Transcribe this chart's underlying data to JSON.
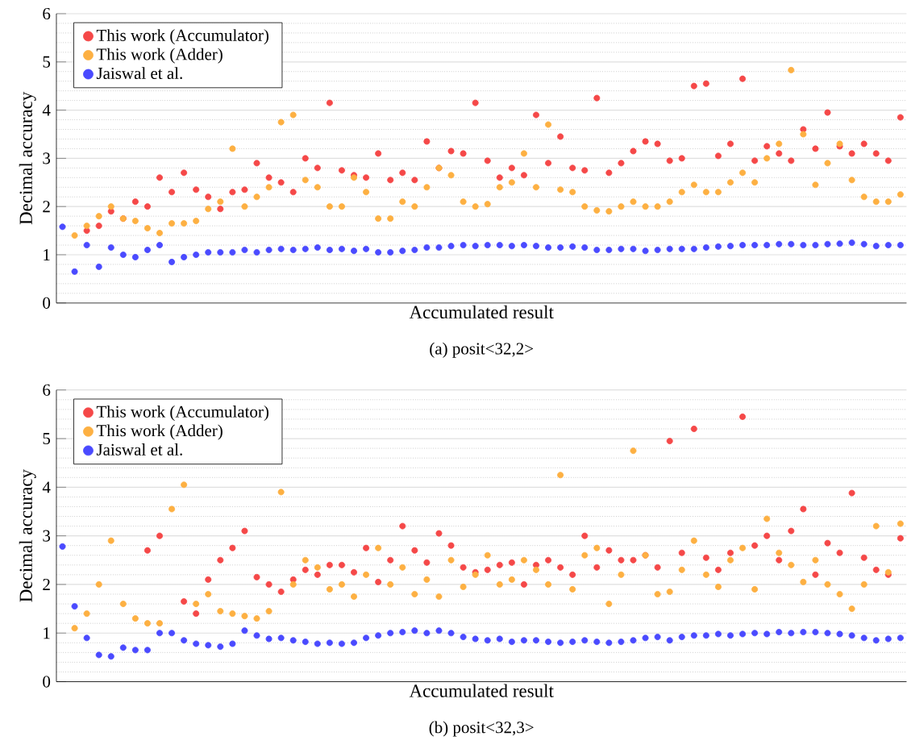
{
  "chart_data": [
    {
      "type": "scatter",
      "title": "(a) posit<32,2>",
      "xlabel": "Accumulated result",
      "ylabel": "Decimal accuracy",
      "categories": [
        null,
        null,
        null,
        null,
        null,
        null,
        null,
        null,
        null,
        null,
        null,
        null,
        null,
        null,
        null,
        null,
        null,
        null,
        null,
        null,
        null,
        null,
        null,
        null,
        null,
        null,
        null,
        null,
        null,
        null,
        null,
        null,
        null,
        null,
        null,
        null,
        null,
        null,
        null,
        null,
        null,
        null,
        null,
        null,
        null,
        null,
        null,
        null,
        null,
        null,
        null,
        null,
        null,
        null,
        null,
        null,
        null,
        null,
        null,
        null,
        null,
        null,
        null,
        null,
        null,
        null,
        null,
        null,
        null,
        null
      ],
      "ylim": [
        0,
        6
      ],
      "yticks": [
        0,
        1,
        2,
        3,
        4,
        5,
        6
      ],
      "grid": "y",
      "legend": "top left",
      "marker": "circle",
      "tick_labels": "y",
      "series": [
        {
          "name": "This work (Accumulator)",
          "color": "#f54848",
          "values": [
            null,
            null,
            1.5,
            1.6,
            1.9,
            1.75,
            2.1,
            2.0,
            2.6,
            2.3,
            2.7,
            2.35,
            2.2,
            1.95,
            2.3,
            2.35,
            2.9,
            2.6,
            2.5,
            2.3,
            3.0,
            2.8,
            4.15,
            2.75,
            2.65,
            2.6,
            3.1,
            2.55,
            2.7,
            2.55,
            3.35,
            2.8,
            3.15,
            3.1,
            4.15,
            2.95,
            2.6,
            2.8,
            2.65,
            3.9,
            2.9,
            3.45,
            2.8,
            2.75,
            4.25,
            2.7,
            2.9,
            3.15,
            3.35,
            3.3,
            2.95,
            3.0,
            4.5,
            4.55,
            3.05,
            3.3,
            4.65,
            2.95,
            3.25,
            3.1,
            2.95,
            3.6,
            3.2,
            3.95,
            3.25,
            3.1,
            3.3,
            3.1,
            2.95,
            3.85
          ]
        },
        {
          "name": "This work (Adder)",
          "color": "#fdb042",
          "values": [
            null,
            1.4,
            1.6,
            1.8,
            2.0,
            1.75,
            1.7,
            1.55,
            1.45,
            1.65,
            1.65,
            1.7,
            1.95,
            2.1,
            3.2,
            2.0,
            2.2,
            2.4,
            3.75,
            3.9,
            2.55,
            2.4,
            2.0,
            2.0,
            2.6,
            2.3,
            1.75,
            1.75,
            2.1,
            2.0,
            2.4,
            2.8,
            2.65,
            2.1,
            2.0,
            2.05,
            2.4,
            2.5,
            3.1,
            2.4,
            3.7,
            2.35,
            2.3,
            2.0,
            1.92,
            1.9,
            2.0,
            2.1,
            2.0,
            2.0,
            2.1,
            2.3,
            2.45,
            2.3,
            2.3,
            2.5,
            2.7,
            2.5,
            3.0,
            3.3,
            4.83,
            3.5,
            2.45,
            2.9,
            3.3,
            2.55,
            2.2,
            2.1,
            2.1,
            2.25
          ]
        },
        {
          "name": "Jaiswal et al.",
          "color": "#4a4aff",
          "values": [
            1.58,
            0.65,
            1.2,
            0.75,
            1.15,
            1.0,
            0.95,
            1.1,
            1.2,
            0.85,
            0.95,
            1.0,
            1.05,
            1.05,
            1.05,
            1.1,
            1.05,
            1.1,
            1.12,
            1.1,
            1.12,
            1.15,
            1.1,
            1.12,
            1.08,
            1.12,
            1.05,
            1.05,
            1.08,
            1.1,
            1.15,
            1.15,
            1.18,
            1.2,
            1.18,
            1.2,
            1.2,
            1.18,
            1.2,
            1.18,
            1.15,
            1.15,
            1.17,
            1.15,
            1.1,
            1.1,
            1.12,
            1.12,
            1.08,
            1.1,
            1.12,
            1.12,
            1.12,
            1.15,
            1.17,
            1.18,
            1.2,
            1.2,
            1.2,
            1.22,
            1.22,
            1.2,
            1.2,
            1.22,
            1.23,
            1.25,
            1.22,
            1.18,
            1.2,
            1.2
          ]
        }
      ]
    },
    {
      "type": "scatter",
      "title": "(b) posit<32,3>",
      "xlabel": "Accumulated result",
      "ylabel": "Decimal accuracy",
      "categories": [
        null,
        null,
        null,
        null,
        null,
        null,
        null,
        null,
        null,
        null,
        null,
        null,
        null,
        null,
        null,
        null,
        null,
        null,
        null,
        null,
        null,
        null,
        null,
        null,
        null,
        null,
        null,
        null,
        null,
        null,
        null,
        null,
        null,
        null,
        null,
        null,
        null,
        null,
        null,
        null,
        null,
        null,
        null,
        null,
        null,
        null,
        null,
        null,
        null,
        null,
        null,
        null,
        null,
        null,
        null,
        null,
        null,
        null,
        null,
        null,
        null,
        null,
        null,
        null,
        null,
        null,
        null,
        null,
        null,
        null
      ],
      "ylim": [
        0,
        6
      ],
      "yticks": [
        0,
        1,
        2,
        3,
        4,
        5,
        6
      ],
      "grid": "y",
      "legend": "top left",
      "marker": "circle",
      "tick_labels": "y",
      "series": [
        {
          "name": "This work (Accumulator)",
          "color": "#f54848",
          "values": [
            null,
            null,
            null,
            null,
            null,
            null,
            null,
            2.7,
            3.0,
            null,
            1.65,
            1.4,
            2.1,
            2.5,
            2.75,
            3.1,
            2.15,
            2.0,
            1.85,
            2.1,
            2.3,
            2.2,
            2.4,
            2.4,
            2.25,
            2.75,
            2.05,
            2.5,
            3.2,
            2.7,
            2.45,
            3.05,
            2.8,
            2.35,
            2.25,
            2.3,
            2.4,
            2.45,
            2.0,
            2.4,
            2.5,
            2.35,
            2.2,
            3.0,
            2.35,
            2.7,
            2.5,
            2.5,
            2.6,
            2.35,
            4.95,
            2.65,
            5.2,
            2.55,
            2.3,
            2.65,
            5.45,
            2.8,
            3.0,
            2.5,
            3.1,
            3.55,
            2.2,
            2.85,
            2.65,
            3.88,
            2.55,
            2.3,
            2.2,
            2.95
          ]
        },
        {
          "name": "This work (Adder)",
          "color": "#fdb042",
          "values": [
            null,
            1.1,
            1.4,
            2.0,
            2.9,
            1.6,
            1.3,
            1.2,
            1.2,
            3.55,
            4.05,
            1.6,
            1.8,
            1.45,
            1.4,
            1.35,
            1.3,
            1.45,
            3.9,
            2.0,
            2.5,
            2.35,
            1.9,
            2.0,
            1.75,
            2.2,
            2.75,
            2.0,
            2.35,
            1.8,
            2.1,
            1.75,
            2.5,
            1.95,
            2.2,
            2.6,
            2.0,
            2.1,
            2.5,
            2.3,
            2.0,
            4.25,
            1.9,
            2.6,
            2.75,
            1.6,
            2.2,
            4.75,
            2.6,
            1.8,
            1.85,
            2.3,
            2.9,
            2.2,
            1.95,
            2.5,
            2.75,
            1.9,
            3.35,
            2.65,
            2.4,
            2.05,
            2.5,
            2.0,
            1.8,
            1.5,
            2.0,
            3.2,
            2.25,
            3.25
          ]
        },
        {
          "name": "Jaiswal et al.",
          "color": "#4a4aff",
          "values": [
            2.78,
            1.55,
            0.9,
            0.55,
            0.52,
            0.7,
            0.65,
            0.65,
            1.0,
            1.0,
            0.85,
            0.78,
            0.75,
            0.72,
            0.78,
            1.05,
            0.95,
            0.88,
            0.9,
            0.85,
            0.82,
            0.78,
            0.8,
            0.78,
            0.8,
            0.9,
            0.95,
            1.0,
            1.02,
            1.05,
            1.0,
            1.05,
            1.0,
            0.92,
            0.88,
            0.85,
            0.88,
            0.82,
            0.85,
            0.85,
            0.82,
            0.8,
            0.82,
            0.85,
            0.82,
            0.8,
            0.82,
            0.85,
            0.9,
            0.92,
            0.85,
            0.92,
            0.95,
            0.95,
            0.98,
            0.95,
            0.98,
            1.0,
            0.98,
            1.02,
            1.0,
            1.02,
            1.02,
            1.0,
            0.98,
            0.95,
            0.9,
            0.85,
            0.88,
            0.9
          ]
        }
      ]
    }
  ]
}
